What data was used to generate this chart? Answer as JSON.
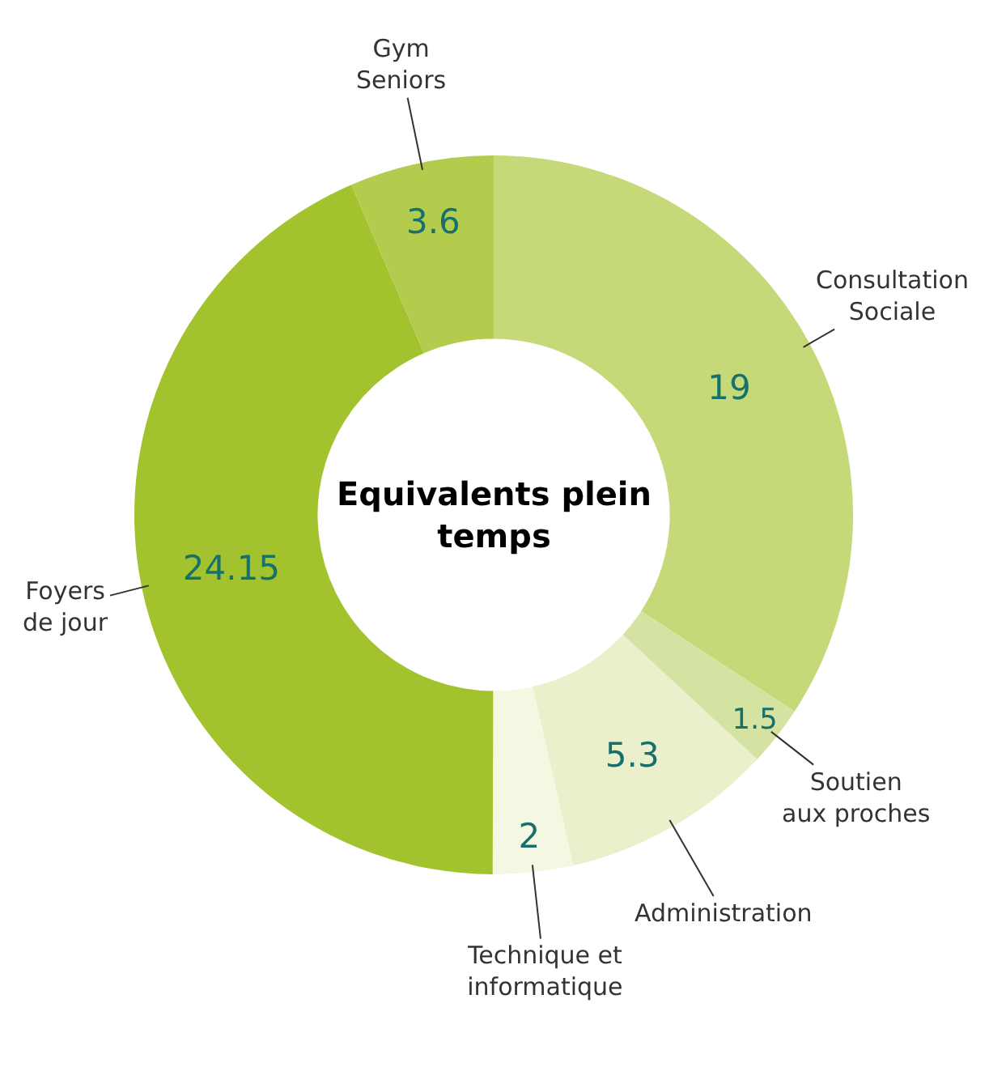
{
  "chart_data": {
    "type": "donut",
    "title": "Equivalents plein temps",
    "categories": [
      "Consultation\nSociale",
      "Soutien\naux proches",
      "Administration",
      "Technique et\ninformatique",
      "Foyers\nde jour",
      "Gym\nSeniors"
    ],
    "values": [
      19,
      1.5,
      5.3,
      2,
      24.15,
      3.6
    ],
    "colors": [
      "#c5d978",
      "#d5e3a2",
      "#e9f0cb",
      "#f4f7e2",
      "#a2c32d",
      "#b3cc4e"
    ],
    "data_labels": true,
    "legend": false
  }
}
